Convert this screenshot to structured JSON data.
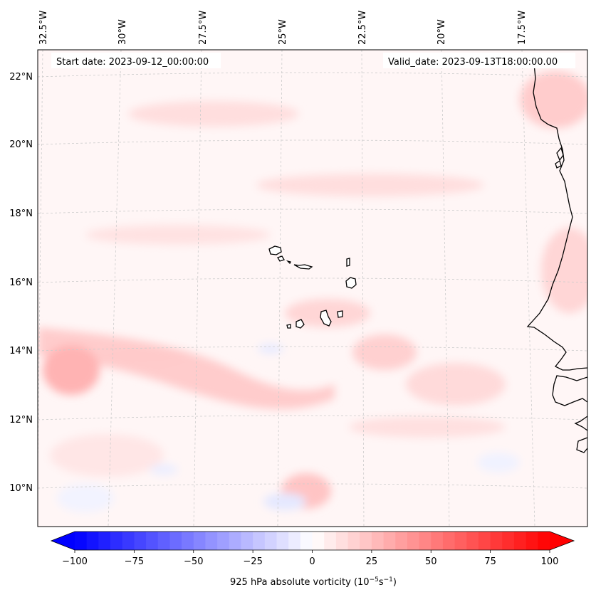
{
  "map": {
    "start_date_text": "Start date: 2023-09-12_00:00:00",
    "valid_date_text": "Valid_date: 2023-09-13T18:00:00.00",
    "lon_labels": [
      "32.5°W",
      "30°W",
      "27.5°W",
      "25°W",
      "22.5°W",
      "20°W",
      "17.5°W"
    ],
    "lat_labels": [
      "22°N",
      "20°N",
      "18°N",
      "16°N",
      "14°N",
      "12°N",
      "10°N"
    ],
    "coast_color": "#000000",
    "grid_color": "#cccccc"
  },
  "colorbar": {
    "label_main": "925 hPa absolute vorticity (10",
    "label_exp1": "−5",
    "label_mid": "s",
    "label_exp2": "−1",
    "label_end": ")",
    "ticks": [
      "−100",
      "−75",
      "−50",
      "−25",
      "0",
      "25",
      "50",
      "75",
      "100"
    ],
    "min": -100,
    "max": 100,
    "min_color": "#0000ff",
    "mid_color": "#ffffff",
    "max_color": "#ff0000"
  }
}
